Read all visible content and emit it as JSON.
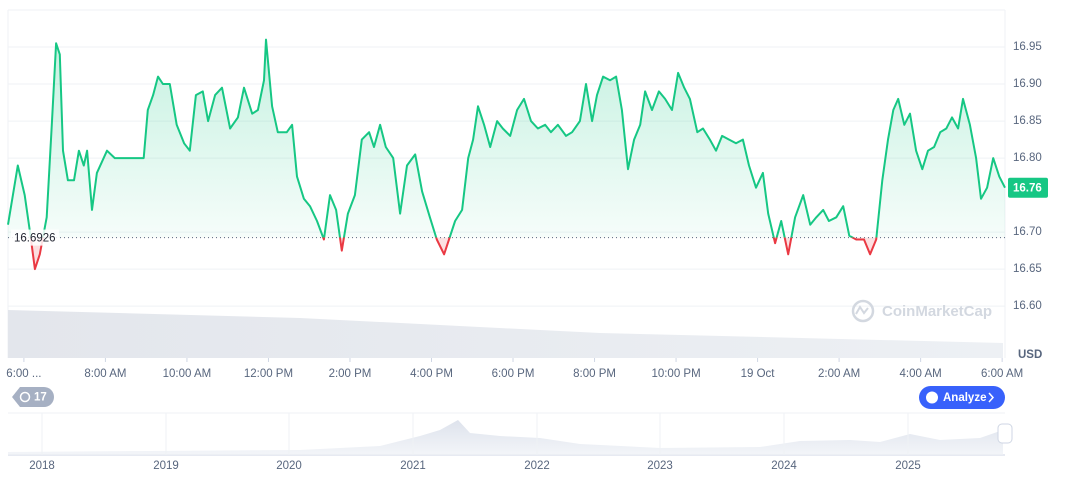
{
  "chart_data": {
    "type": "line",
    "x": [
      -0.39,
      -0.15,
      0.02,
      0.15,
      0.27,
      0.39,
      0.56,
      0.69,
      0.79,
      0.88,
      0.96,
      1.08,
      1.23,
      1.35,
      1.47,
      1.55,
      1.67,
      1.79,
      2.04,
      2.23,
      2.43,
      2.6,
      2.8,
      2.94,
      3.04,
      3.17,
      3.29,
      3.41,
      3.58,
      3.75,
      3.93,
      4.07,
      4.22,
      4.39,
      4.52,
      4.69,
      4.86,
      5.06,
      5.25,
      5.4,
      5.6,
      5.74,
      5.89,
      5.94,
      6.09,
      6.23,
      6.45,
      6.58,
      6.7,
      6.87,
      7.02,
      7.19,
      7.36,
      7.51,
      7.66,
      7.8,
      7.95,
      8.12,
      8.29,
      8.47,
      8.59,
      8.74,
      8.88,
      9.06,
      9.23,
      9.4,
      9.6,
      9.77,
      9.96,
      10.13,
      10.31,
      10.43,
      10.58,
      10.75,
      10.9,
      11.02,
      11.14,
      11.29,
      11.44,
      11.61,
      11.75,
      11.93,
      12.1,
      12.27,
      12.44,
      12.61,
      12.79,
      12.93,
      13.1,
      13.3,
      13.45,
      13.64,
      13.79,
      13.94,
      14.06,
      14.21,
      14.38,
      14.53,
      14.67,
      14.82,
      14.97,
      15.12,
      15.24,
      15.41,
      15.58,
      15.73,
      15.9,
      16.05,
      16.2,
      16.34,
      16.52,
      16.66,
      16.83,
      16.98,
      17.13,
      17.3,
      17.47,
      17.64,
      17.79,
      17.96,
      18.13,
      18.26,
      18.43,
      18.58,
      18.75,
      18.92,
      19.12,
      19.29,
      19.44,
      19.61,
      19.75,
      19.93,
      20.1,
      20.25,
      20.42,
      20.61,
      20.76,
      20.91,
      21.06,
      21.2,
      21.33,
      21.45,
      21.6,
      21.74,
      21.89,
      22.04,
      22.18,
      22.33,
      22.48,
      22.63,
      22.77,
      22.92,
      23.04,
      23.21,
      23.36,
      23.48,
      23.63,
      23.78,
      23.93,
      24.07
    ],
    "values": [
      16.71,
      16.79,
      16.75,
      16.7,
      16.65,
      16.67,
      16.72,
      16.85,
      16.955,
      16.94,
      16.81,
      16.77,
      16.77,
      16.81,
      16.79,
      16.81,
      16.73,
      16.78,
      16.81,
      16.8,
      16.8,
      16.8,
      16.8,
      16.8,
      16.865,
      16.885,
      16.91,
      16.9,
      16.9,
      16.845,
      16.82,
      16.81,
      16.885,
      16.89,
      16.85,
      16.885,
      16.895,
      16.84,
      16.855,
      16.895,
      16.86,
      16.865,
      16.905,
      16.96,
      16.87,
      16.835,
      16.835,
      16.845,
      16.775,
      16.745,
      16.735,
      16.715,
      16.69,
      16.75,
      16.73,
      16.675,
      16.725,
      16.75,
      16.825,
      16.835,
      16.815,
      16.845,
      16.815,
      16.8,
      16.725,
      16.79,
      16.805,
      16.755,
      16.72,
      16.69,
      16.67,
      16.69,
      16.715,
      16.73,
      16.8,
      16.825,
      16.87,
      16.845,
      16.815,
      16.85,
      16.84,
      16.83,
      16.865,
      16.88,
      16.85,
      16.84,
      16.845,
      16.835,
      16.845,
      16.83,
      16.835,
      16.85,
      16.9,
      16.85,
      16.885,
      16.91,
      16.905,
      16.91,
      16.865,
      16.785,
      16.825,
      16.845,
      16.89,
      16.865,
      16.89,
      16.88,
      16.865,
      16.915,
      16.895,
      16.88,
      16.835,
      16.84,
      16.825,
      16.81,
      16.83,
      16.825,
      16.82,
      16.825,
      16.79,
      16.76,
      16.78,
      16.725,
      16.685,
      16.715,
      16.67,
      16.72,
      16.75,
      16.71,
      16.72,
      16.73,
      16.715,
      16.72,
      16.735,
      16.695,
      16.69,
      16.69,
      16.67,
      16.69,
      16.77,
      16.825,
      16.865,
      16.88,
      16.845,
      16.86,
      16.81,
      16.785,
      16.81,
      16.815,
      16.835,
      16.84,
      16.855,
      16.84,
      16.88,
      16.845,
      16.8,
      16.745,
      16.76,
      16.8,
      16.775,
      16.76
    ],
    "color": "#16c784",
    "down_color": "#ea3943",
    "baseline": 16.6926,
    "current_price": 16.76,
    "y_unit": "USD",
    "xlim": [
      -0.39,
      24.07
    ],
    "xticks": [
      {
        "value": 0,
        "label": "6:00 ..."
      },
      {
        "value": 2,
        "label": "8:00 AM"
      },
      {
        "value": 4,
        "label": "10:00 AM"
      },
      {
        "value": 6,
        "label": "12:00 PM"
      },
      {
        "value": 8,
        "label": "2:00 PM"
      },
      {
        "value": 10,
        "label": "4:00 PM"
      },
      {
        "value": 12,
        "label": "6:00 PM"
      },
      {
        "value": 14,
        "label": "8:00 PM"
      },
      {
        "value": 16,
        "label": "10:00 PM"
      },
      {
        "value": 18,
        "label": "19 Oct"
      },
      {
        "value": 20,
        "label": "2:00 AM"
      },
      {
        "value": 22,
        "label": "4:00 AM"
      },
      {
        "value": 24,
        "label": "6:00 AM"
      }
    ],
    "ylim": [
      16.53,
      17.0
    ],
    "yticks": [
      {
        "value": 16.6,
        "label": "16.60"
      },
      16.65,
      {
        "value": 16.7,
        "label": "16.70"
      },
      {
        "value": 16.8,
        "label": "16.80"
      },
      16.85,
      {
        "value": 16.9,
        "label": "16.90"
      },
      16.95
    ],
    "grid": true,
    "watermark": "CoinMarketCap",
    "history_badge": "17",
    "analyze_button": "Analyze",
    "navigator_labels": [
      "2018",
      "2019",
      "2020",
      "2021",
      "2022",
      "2023",
      "2024",
      "2025"
    ]
  }
}
